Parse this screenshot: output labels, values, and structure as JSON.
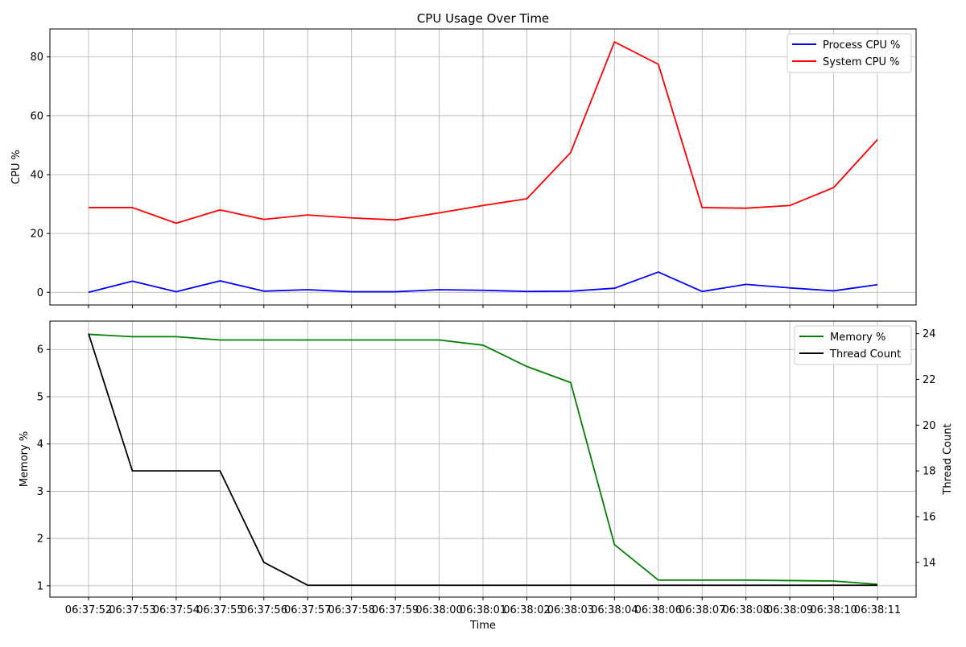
{
  "chart_data": [
    {
      "type": "line",
      "title": "CPU Usage Over Time",
      "xlabel": "",
      "ylabel": "CPU %",
      "ylim": [
        -4.3,
        89.5
      ],
      "yticks": [
        0,
        20,
        40,
        60,
        80
      ],
      "grid": true,
      "legend_position": "top-right",
      "x": [
        "06:37:52",
        "06:37:53",
        "06:37:54",
        "06:37:55",
        "06:37:56",
        "06:37:57",
        "06:37:58",
        "06:37:59",
        "06:38:00",
        "06:38:01",
        "06:38:02",
        "06:38:03",
        "06:38:04",
        "06:38:06",
        "06:38:07",
        "06:38:08",
        "06:38:09",
        "06:38:10",
        "06:38:11"
      ],
      "series": [
        {
          "name": "Process CPU %",
          "color": "#0000ff",
          "values": [
            0.0,
            3.8,
            0.2,
            3.9,
            0.4,
            0.9,
            0.2,
            0.2,
            0.9,
            0.7,
            0.3,
            0.4,
            1.4,
            6.9,
            0.3,
            2.7,
            1.5,
            0.5,
            2.6
          ]
        },
        {
          "name": "System CPU %",
          "color": "#ff0000",
          "values": [
            28.8,
            28.8,
            23.5,
            28.0,
            24.8,
            26.3,
            25.3,
            24.6,
            27.0,
            29.5,
            31.8,
            47.5,
            85.1,
            77.5,
            28.8,
            28.6,
            29.5,
            35.6,
            51.9
          ]
        }
      ]
    },
    {
      "type": "line",
      "title": "",
      "xlabel": "Time",
      "ylabel": "Memory %",
      "ylabel_right": "Thread Count",
      "ylim": [
        0.76,
        6.6
      ],
      "ylim_right": [
        12.48,
        24.55
      ],
      "yticks": [
        1,
        2,
        3,
        4,
        5,
        6
      ],
      "yticks_right": [
        14,
        16,
        18,
        20,
        22,
        24
      ],
      "grid": true,
      "legend_position": "top-right",
      "x": [
        "06:37:52",
        "06:37:53",
        "06:37:54",
        "06:37:55",
        "06:37:56",
        "06:37:57",
        "06:37:58",
        "06:37:59",
        "06:38:00",
        "06:38:01",
        "06:38:02",
        "06:38:03",
        "06:38:04",
        "06:38:06",
        "06:38:07",
        "06:38:08",
        "06:38:09",
        "06:38:10",
        "06:38:11"
      ],
      "series": [
        {
          "name": "Memory %",
          "axis": "left",
          "color": "#008000",
          "values": [
            6.32,
            6.27,
            6.27,
            6.2,
            6.2,
            6.2,
            6.2,
            6.2,
            6.2,
            6.09,
            5.64,
            5.3,
            1.87,
            1.12,
            1.12,
            1.12,
            1.11,
            1.1,
            1.03
          ]
        },
        {
          "name": "Thread Count",
          "axis": "right",
          "color": "#000000",
          "values": [
            24,
            18,
            18,
            18,
            14,
            13,
            13,
            13,
            13,
            13,
            13,
            13,
            13,
            13,
            13,
            13,
            13,
            13,
            13
          ]
        }
      ]
    }
  ]
}
